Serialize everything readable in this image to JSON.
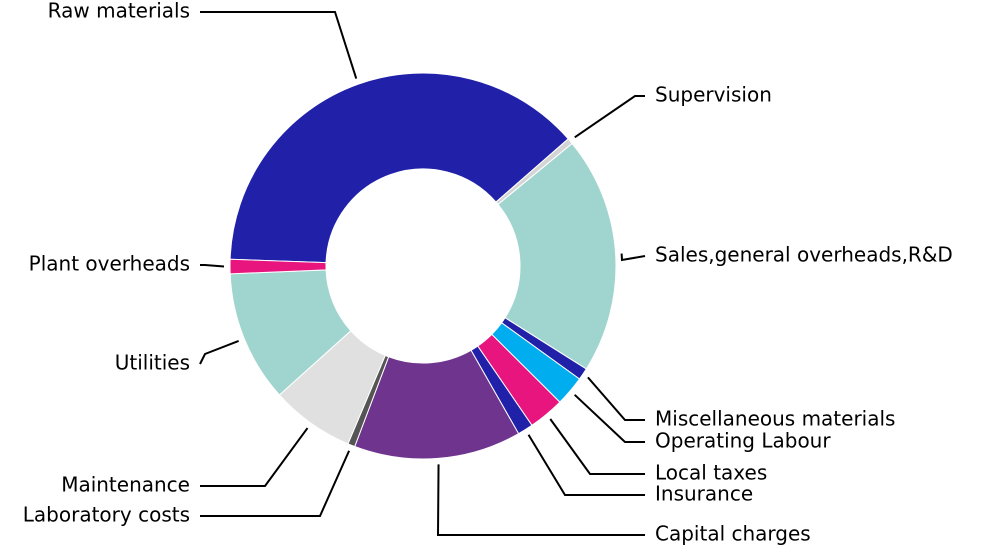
{
  "chart_data": {
    "type": "donut",
    "categories": [
      "Raw materials",
      "Supervision",
      "Sales,general overheads,R&D",
      "Miscellaneous materials",
      "Operating Labour",
      "Local taxes",
      "Insurance",
      "Capital charges",
      "Laboratory costs",
      "Maintenance",
      "Utilities",
      "Plant overheads"
    ],
    "values": [
      38,
      0.5,
      19.9,
      1,
      2.5,
      3,
      1.3,
      14,
      0.6,
      7,
      11,
      1.2
    ],
    "colors": [
      "#2020a8",
      "#d4d4d4",
      "#a0d5cf",
      "#2020a8",
      "#00aeef",
      "#e8157f",
      "#2020a8",
      "#6f358e",
      "#555555",
      "#e0e0e0",
      "#a0d5cf",
      "#e8157f"
    ]
  }
}
